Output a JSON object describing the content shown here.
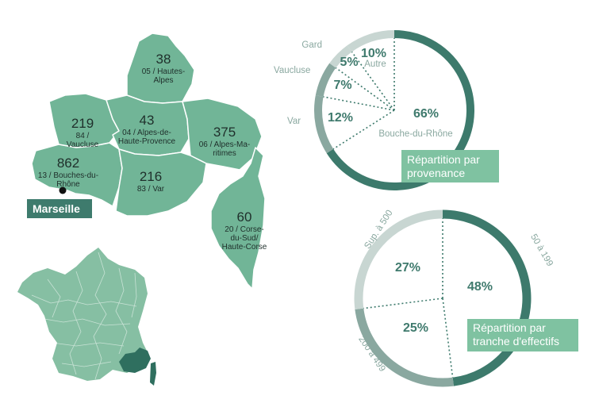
{
  "colors": {
    "region_fill": "#71b597",
    "region_stroke": "#ffffff",
    "france_fill": "#86bfa3",
    "highlight_fill": "#2f6f5f",
    "marseille_tag_bg": "#3e7b6d",
    "ring_dark": "#3d7a6c",
    "ring_mid": "#8aa8a0",
    "ring_light": "#c8d6d2",
    "pct_text": "#3f7a6d",
    "caption_bg": "#7fc2a1"
  },
  "map": {
    "regions": [
      {
        "id": "05",
        "count": "38",
        "name_lines": [
          "05 / Hautes-",
          "Alpes"
        ]
      },
      {
        "id": "84",
        "count": "219",
        "name_lines": [
          "84 /",
          "Vaucluse"
        ]
      },
      {
        "id": "04",
        "count": "43",
        "name_lines": [
          "04 / Alpes-de-",
          "Haute-Provence"
        ]
      },
      {
        "id": "06",
        "count": "375",
        "name_lines": [
          "06 / Alpes-Ma-",
          "ritimes"
        ]
      },
      {
        "id": "13",
        "count": "862",
        "name_lines": [
          "13 / Bouches-du-",
          "Rhône"
        ]
      },
      {
        "id": "83",
        "count": "216",
        "name_lines": [
          "83 / Var"
        ]
      },
      {
        "id": "20",
        "count": "60",
        "name_lines": [
          "20 / Corse-",
          "du-Sud/",
          "Haute-Corse"
        ]
      }
    ],
    "city_label": "Marseille"
  },
  "chart_data": [
    {
      "type": "pie",
      "caption_lines": [
        "Répartition par",
        "provenance"
      ],
      "slices": [
        {
          "label": "Bouche-du-Rhône",
          "value": 66,
          "pct_label": "66%",
          "tone": "dark"
        },
        {
          "label": "Var",
          "value": 12,
          "pct_label": "12%",
          "tone": "mid"
        },
        {
          "label": "Vaucluse",
          "value": 7,
          "pct_label": "7%",
          "tone": "mid"
        },
        {
          "label": "Gard",
          "value": 5,
          "pct_label": "5%",
          "tone": "light"
        },
        {
          "label": "Autre",
          "value": 10,
          "pct_label": "10%",
          "tone": "light"
        }
      ]
    },
    {
      "type": "pie",
      "caption_lines": [
        "Répartition par",
        "tranche d'effectifs"
      ],
      "slices": [
        {
          "label": "50 à 199",
          "value": 48,
          "pct_label": "48%",
          "tone": "dark"
        },
        {
          "label": "200 à 499",
          "value": 25,
          "pct_label": "25%",
          "tone": "mid"
        },
        {
          "label": "Sup. à 500",
          "value": 27,
          "pct_label": "27%",
          "tone": "light"
        }
      ]
    }
  ]
}
